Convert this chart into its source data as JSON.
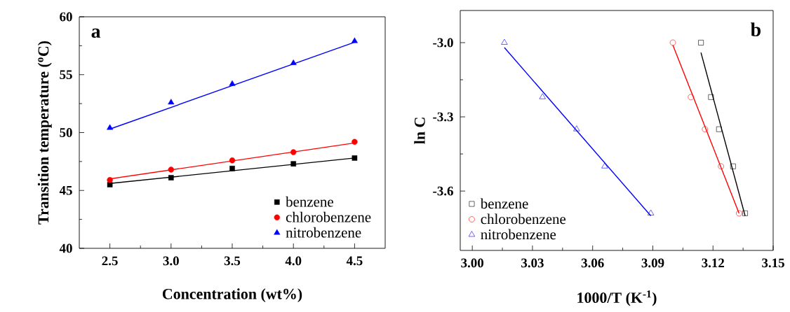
{
  "chart_data": [
    {
      "type": "scatter",
      "xlabel": "Concentration (wt%)",
      "ylabel": "Transition temperature ($^{o}$C)",
      "annotations": [
        "a"
      ],
      "xlim": [
        2.25,
        4.75
      ],
      "xticks": [
        {
          "value": 2.5,
          "label": "2.5"
        },
        {
          "value": 3,
          "label": "3.0"
        },
        {
          "value": 3.5,
          "label": "3.5"
        },
        {
          "value": 4,
          "label": "4.0"
        },
        {
          "value": 4.5,
          "label": "4.5"
        }
      ],
      "ylim": [
        40,
        60
      ],
      "yticks": [
        40,
        45,
        50,
        55,
        60
      ],
      "legend": "bottom right",
      "grid": false,
      "series": [
        {
          "name": "benzene",
          "color": "#000000",
          "marker": "square",
          "x": [
            2.5,
            3.0,
            3.5,
            4.0,
            4.5
          ],
          "values": [
            45.5,
            46.1,
            46.9,
            47.3,
            47.8
          ]
        },
        {
          "name": "chlorobenzene",
          "color": "#ff0000",
          "marker": "circle",
          "x": [
            2.5,
            3.0,
            3.5,
            4.0,
            4.5
          ],
          "values": [
            45.9,
            46.8,
            47.6,
            48.3,
            49.2
          ]
        },
        {
          "name": "nitrobenzene",
          "color": "#0000ff",
          "marker": "triangle",
          "x": [
            2.5,
            3.0,
            3.5,
            4.0,
            4.5
          ],
          "values": [
            50.4,
            52.6,
            54.2,
            56.0,
            57.9
          ]
        },
        {
          "type": "line",
          "color": "#000000",
          "x": [
            2.5,
            4.5
          ],
          "values": [
            45.6,
            47.8
          ]
        },
        {
          "type": "line",
          "color": "#ff0000",
          "x": [
            2.5,
            4.5
          ],
          "values": [
            46.0,
            49.1
          ]
        },
        {
          "type": "line",
          "color": "#0000ff",
          "x": [
            2.5,
            4.5
          ],
          "values": [
            50.3,
            57.8
          ]
        }
      ]
    },
    {
      "type": "scatter",
      "xlabel": "1000/T (K$^{-1}$)",
      "ylabel": "ln C",
      "annotations": [
        "b"
      ],
      "xlim": [
        2.994,
        3.15
      ],
      "xticks": [
        {
          "value": 3.0,
          "label": "3.00"
        },
        {
          "value": 3.03,
          "label": "3.03"
        },
        {
          "value": 3.06,
          "label": "3.06"
        },
        {
          "value": 3.09,
          "label": "3.09"
        },
        {
          "value": 3.12,
          "label": "3.12"
        },
        {
          "value": 3.15,
          "label": "3.15"
        }
      ],
      "ylim": [
        -3.84,
        -2.87
      ],
      "yticks": [
        {
          "value": -3.0,
          "label": "-3.0"
        },
        {
          "value": -3.3,
          "label": "-3.3"
        },
        {
          "value": -3.6,
          "label": "-3.6"
        }
      ],
      "legend": "bottom left",
      "grid": false,
      "series": [
        {
          "name": "benzene",
          "color": "#000000",
          "marker": "square",
          "x": [
            3.114,
            3.119,
            3.123,
            3.13,
            3.136
          ],
          "values": [
            -3.0,
            -3.22,
            -3.35,
            -3.5,
            -3.69
          ]
        },
        {
          "name": "chlorobenzene",
          "color": "#ff0000",
          "marker": "circle",
          "x": [
            3.1,
            3.109,
            3.116,
            3.124,
            3.133
          ],
          "values": [
            -3.0,
            -3.22,
            -3.35,
            -3.5,
            -3.69
          ]
        },
        {
          "name": "nitrobenzene",
          "color": "#0000ff",
          "marker": "triangle",
          "x": [
            3.016,
            3.035,
            3.052,
            3.066,
            3.089
          ],
          "values": [
            -3.0,
            -3.22,
            -3.35,
            -3.5,
            -3.69
          ]
        },
        {
          "type": "line",
          "color": "#000000",
          "x": [
            3.114,
            3.136
          ],
          "values": [
            -3.04,
            -3.7
          ]
        },
        {
          "type": "line",
          "color": "#ff0000",
          "x": [
            3.1,
            3.133
          ],
          "values": [
            -3.01,
            -3.69
          ]
        },
        {
          "type": "line",
          "color": "#0000ff",
          "x": [
            3.016,
            3.089
          ],
          "values": [
            -3.02,
            -3.7
          ]
        }
      ]
    }
  ]
}
